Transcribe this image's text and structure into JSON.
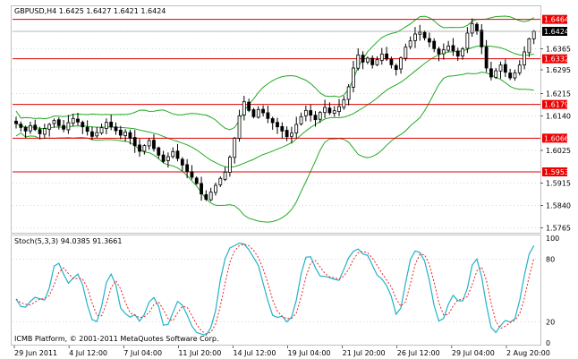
{
  "header": {
    "symbol_text": "GBPUSD,H4  1.6425 1.6427 1.6421 1.6424"
  },
  "colors": {
    "bg": "#ffffff",
    "grid": "#c0c0c0",
    "candle": "#000000",
    "band": "#22aa22",
    "level": "#dd0000",
    "tag_bg": "#ee0000",
    "tag_text": "#ffffff",
    "stoch_main": "#20b2c8",
    "stoch_signal": "#ee2222",
    "price_tag_bg": "#000000"
  },
  "price_scale": {
    "labels": [
      "1.6424",
      "1.6365",
      "1.6295",
      "1.6215",
      "1.6140",
      "1.6025",
      "1.5915",
      "1.5840",
      "1.5765"
    ],
    "ylim": [
      1.5755,
      1.6505
    ]
  },
  "levels": [
    {
      "value": 1.6464,
      "label": "1.6464"
    },
    {
      "value": 1.6332,
      "label": "1.6332"
    },
    {
      "value": 1.6179,
      "label": "1.6179"
    },
    {
      "value": 1.6066,
      "label": "1.6066"
    },
    {
      "value": 1.5953,
      "label": "1.5953"
    }
  ],
  "last_price": {
    "value": 1.6424,
    "label": "1.6424"
  },
  "stochastic": {
    "label": "Stoch(5,3,3) 94.0385 91.3661",
    "scale_labels": [
      "100",
      "80",
      "20",
      "0"
    ]
  },
  "time_axis": {
    "labels": [
      "29 Jun 2011",
      "4 Jul 12:00",
      "7 Jul 04:00",
      "11 Jul 20:00",
      "14 Jul 12:00",
      "19 Jul 04:00",
      "21 Jul 20:00",
      "26 Jul 12:00",
      "29 Jul 04:00",
      "2 Aug 20:00"
    ]
  },
  "footer": {
    "copyright": "ICMB Platform, © 2001-2011 MetaQuotes Software Corp."
  },
  "chart_data": {
    "type": "candlestick",
    "closes": [
      1.6115,
      1.6102,
      1.609,
      1.6108,
      1.6095,
      1.6081,
      1.6098,
      1.6112,
      1.6125,
      1.6108,
      1.6096,
      1.6118,
      1.6132,
      1.612,
      1.6104,
      1.6089,
      1.6072,
      1.6085,
      1.6101,
      1.6119,
      1.6104,
      1.6091,
      1.6076,
      1.6087,
      1.6066,
      1.6041,
      1.6022,
      1.6041,
      1.6058,
      1.6031,
      1.6009,
      1.5988,
      1.6004,
      1.6021,
      1.5998,
      1.5976,
      1.5955,
      1.5935,
      1.5914,
      1.5879,
      1.5861,
      1.5885,
      1.5908,
      1.5931,
      1.5952,
      1.6002,
      1.6066,
      1.6141,
      1.6188,
      1.6159,
      1.6138,
      1.6162,
      1.6151,
      1.6132,
      1.6118,
      1.6104,
      1.609,
      1.6071,
      1.6083,
      1.6112,
      1.6138,
      1.6159,
      1.6143,
      1.6128,
      1.6152,
      1.6169,
      1.6151,
      1.6158,
      1.6172,
      1.6195,
      1.6238,
      1.6301,
      1.6345,
      1.6321,
      1.6334,
      1.6312,
      1.6329,
      1.6348,
      1.6331,
      1.6312,
      1.6296,
      1.6335,
      1.6371,
      1.6392,
      1.6415,
      1.6421,
      1.6402,
      1.6388,
      1.6366,
      1.6348,
      1.6362,
      1.6375,
      1.6359,
      1.6341,
      1.6365,
      1.6418,
      1.645,
      1.6425,
      1.6372,
      1.6301,
      1.6271,
      1.6292,
      1.6311,
      1.6287,
      1.6268,
      1.6285,
      1.6311,
      1.6355,
      1.6399,
      1.6424
    ]
  }
}
